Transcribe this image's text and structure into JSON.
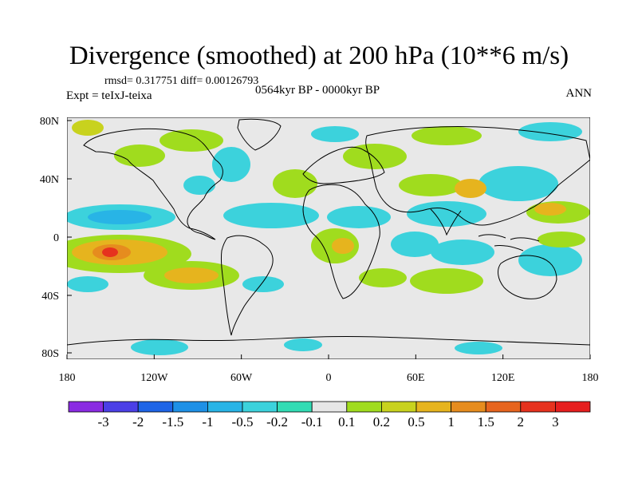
{
  "title": "Divergence (smoothed) at 200 hPa (10**6 m/s)",
  "stats": "rmsd= 0.317751  diff= 0.00126793",
  "period": "0564kyr BP - 0000kyr BP",
  "experiment": "Expt = teIxJ-teixa",
  "season": "ANN",
  "axes": {
    "x_ticks": [
      "180",
      "120W",
      "60W",
      "0",
      "60E",
      "120E",
      "180"
    ],
    "y_ticks": [
      "80N",
      "40N",
      "0",
      "40S",
      "80S"
    ]
  },
  "colorbar": {
    "labels": [
      "-3",
      "-2",
      "-1.5",
      "-1",
      "-0.5",
      "-0.2",
      "-0.1",
      "0.1",
      "0.2",
      "0.5",
      "1",
      "1.5",
      "2",
      "3"
    ],
    "colors": [
      "#8a2be2",
      "#4b3fe6",
      "#1e64e6",
      "#1e90e6",
      "#28b4e6",
      "#3cd2dc",
      "#32dcb4",
      "#e6e6e6",
      "#a0dc1e",
      "#c8d21e",
      "#e6b41e",
      "#e68c1e",
      "#e6641e",
      "#e6321e",
      "#e61e1e"
    ]
  },
  "field_colors": {
    "land_bg": "#e8e8e8",
    "neg_light": "#3cd2dc",
    "neg_mid": "#28b4e6",
    "neg_strong": "#1e90e6",
    "pos_light": "#a0dc1e",
    "pos_mid": "#c8d21e",
    "pos_strong": "#e6b41e",
    "pos_vstrong": "#e68c1e",
    "pos_max": "#e6321e"
  }
}
